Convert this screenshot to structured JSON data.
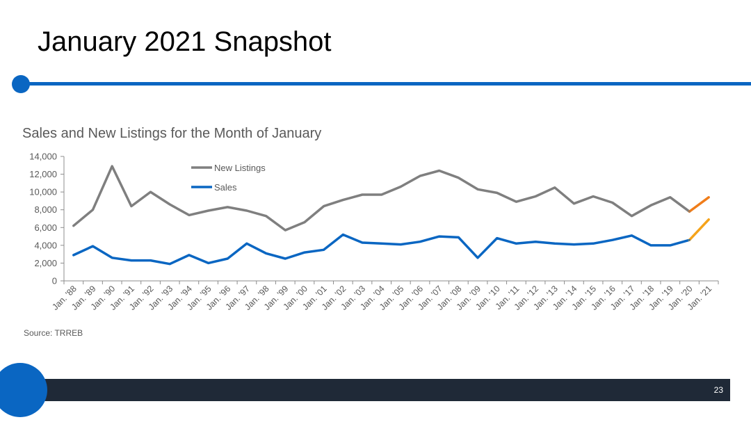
{
  "slide": {
    "title": "January 2021 Snapshot",
    "page_number": "23",
    "accent_color": "#0a66c2",
    "footer_color": "#1f2937"
  },
  "chart_data": {
    "type": "line",
    "title": "Sales and New Listings for the Month of January",
    "source": "Source: TRREB",
    "xlabel": "",
    "ylabel": "",
    "ylim": [
      0,
      14000
    ],
    "yticks": [
      "0",
      "2,000",
      "4,000",
      "6,000",
      "8,000",
      "10,000",
      "12,000",
      "14,000"
    ],
    "categories": [
      "Jan. '88",
      "Jan. '89",
      "Jan. '90",
      "Jan. '91",
      "Jan. '92",
      "Jan. '93",
      "Jan. '94",
      "Jan. '95",
      "Jan. '96",
      "Jan. '97",
      "Jan. '98",
      "Jan. '99",
      "Jan. '00",
      "Jan. '01",
      "Jan. '02",
      "Jan. '03",
      "Jan. '04",
      "Jan. '05",
      "Jan. '06",
      "Jan. '07",
      "Jan. '08",
      "Jan. '09",
      "Jan. '10",
      "Jan. '11",
      "Jan. '12",
      "Jan. '13",
      "Jan. '14",
      "Jan. '15",
      "Jan. '16",
      "Jan. '17",
      "Jan. '18",
      "Jan. '19",
      "Jan. '20",
      "Jan. '21"
    ],
    "legend_position": "top-center",
    "grid": false,
    "series": [
      {
        "name": "New Listings",
        "color": "#7f7f7f",
        "highlight_color": "#f07d1a",
        "values": [
          6200,
          8000,
          12900,
          8400,
          10000,
          8600,
          7400,
          7900,
          8300,
          7900,
          7300,
          5700,
          6600,
          8400,
          9100,
          9700,
          9700,
          10600,
          11800,
          12400,
          11600,
          10300,
          9900,
          8900,
          9500,
          10500,
          8700,
          9500,
          8800,
          7300,
          8500,
          9400,
          7800,
          9400
        ]
      },
      {
        "name": "Sales",
        "color": "#0a66c2",
        "highlight_color": "#f5a31b",
        "values": [
          2900,
          3900,
          2600,
          2300,
          2300,
          1900,
          2900,
          2000,
          2500,
          4200,
          3100,
          2500,
          3200,
          3500,
          5200,
          4300,
          4200,
          4100,
          4400,
          5000,
          4900,
          2600,
          4800,
          4200,
          4400,
          4200,
          4100,
          4200,
          4600,
          5100,
          4000,
          4000,
          4600,
          6900
        ]
      }
    ]
  }
}
